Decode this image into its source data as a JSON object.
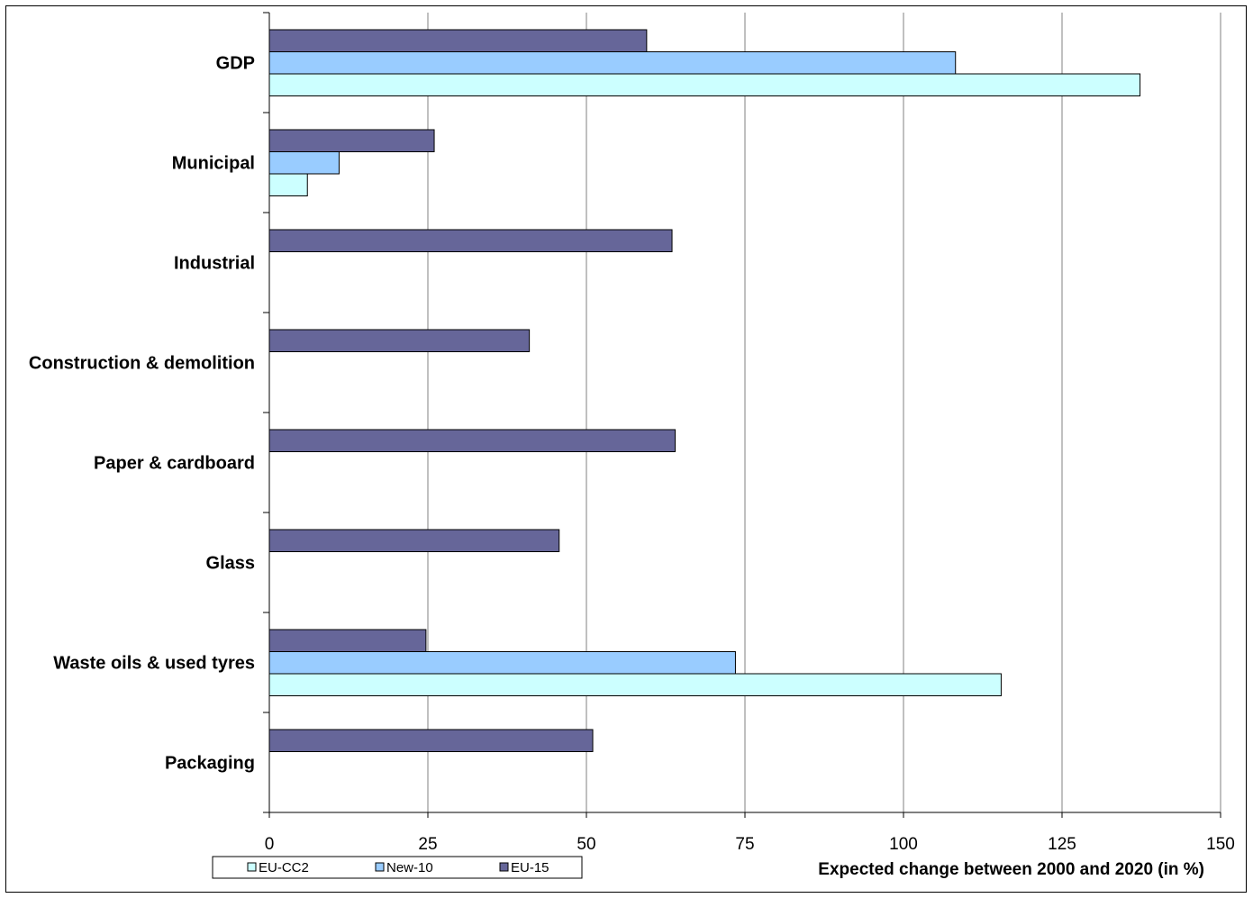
{
  "chart_data": {
    "type": "bar",
    "orientation": "horizontal",
    "categories": [
      "GDP",
      "Municipal",
      "Industrial",
      "Construction & demolition",
      "Paper & cardboard",
      "Glass",
      "Waste oils & used tyres",
      "Packaging"
    ],
    "series": [
      {
        "name": "EU-15",
        "color": "#666699",
        "values": [
          59.5,
          26,
          63.5,
          41,
          64,
          45.7,
          24.7,
          51
        ]
      },
      {
        "name": "New-10",
        "color": "#99ccff",
        "values": [
          108.2,
          11,
          null,
          null,
          null,
          null,
          73.5,
          null
        ]
      },
      {
        "name": "EU-CC2",
        "color": "#ccffff",
        "values": [
          137.3,
          6,
          null,
          null,
          null,
          null,
          115.4,
          null
        ]
      }
    ],
    "xlabel": "Expected change between 2000 and 2020 (in %)",
    "xlim": [
      0,
      150
    ],
    "xticks": [
      0,
      25,
      50,
      75,
      100,
      125,
      150
    ],
    "grid": true,
    "legend": {
      "placement": "bottom-left",
      "entries": [
        "EU-CC2",
        "New-10",
        "EU-15"
      ]
    }
  }
}
